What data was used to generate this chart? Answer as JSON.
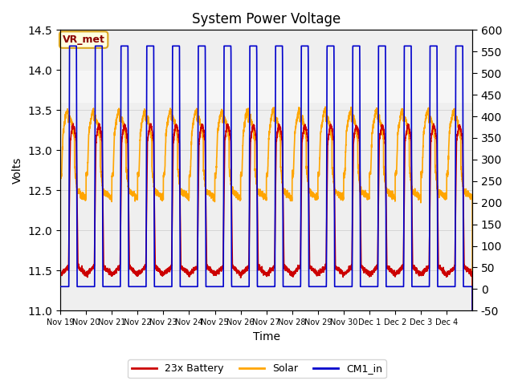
{
  "title": "System Power Voltage",
  "xlabel": "Time",
  "ylabel": "Volts",
  "ylim_left": [
    11.0,
    14.5
  ],
  "ylim_right": [
    -50,
    600
  ],
  "yticks_left": [
    11.0,
    11.5,
    12.0,
    12.5,
    13.0,
    13.5,
    14.0,
    14.5
  ],
  "yticks_right": [
    -50,
    0,
    50,
    100,
    150,
    200,
    250,
    300,
    350,
    400,
    450,
    500,
    550,
    600
  ],
  "xtick_labels": [
    "Nov 19",
    "Nov 20",
    "Nov 21",
    "Nov 22",
    "Nov 23",
    "Nov 24",
    "Nov 25",
    "Nov 26",
    "Nov 27",
    "Nov 28",
    "Nov 29",
    "Nov 30",
    "Dec 1",
    "Dec 2",
    "Dec 3",
    "Dec 4"
  ],
  "shaded_band": [
    13.6,
    14.0
  ],
  "annotation_box_text": "VR_met",
  "annotation_box_color": "#DAA520",
  "annotation_text_color": "#8B0000",
  "line_colors": {
    "battery": "#CC0000",
    "solar": "#FFA500",
    "cm1": "#0000CC"
  },
  "line_widths": {
    "battery": 1.2,
    "solar": 1.2,
    "cm1": 1.2
  },
  "legend_labels": [
    "23x Battery",
    "Solar",
    "CM1_in"
  ],
  "background_color": "#ffffff",
  "grid_color": "#cccccc",
  "n_days": 16
}
